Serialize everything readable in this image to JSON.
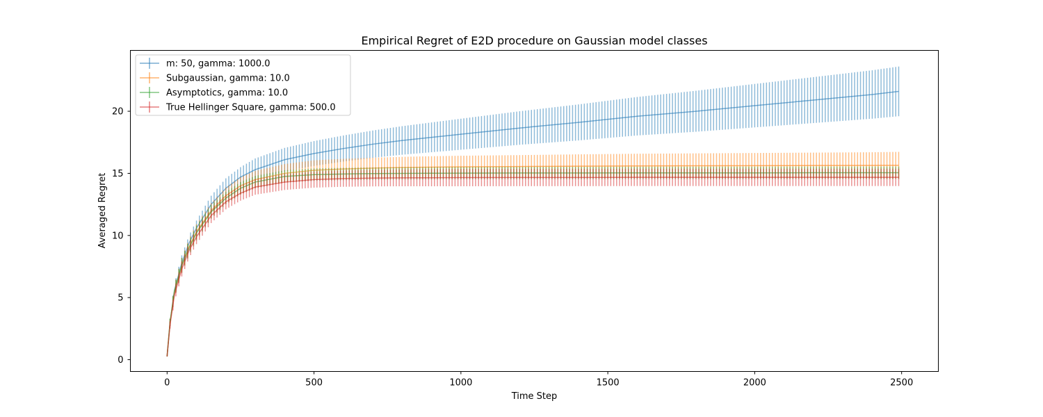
{
  "chart_data": {
    "type": "line",
    "title": "Empirical Regret of E2D procedure on Gaussian model classes",
    "xlabel": "Time Step",
    "ylabel": "Averaged Regret",
    "xlim": [
      -125,
      2625
    ],
    "ylim": [
      -0.95,
      24.9
    ],
    "xticks": [
      0,
      500,
      1000,
      1500,
      2000,
      2500
    ],
    "yticks": [
      0,
      5,
      10,
      15,
      20
    ],
    "grid": false,
    "legend_position": "upper-left",
    "error_bars": true,
    "x": [
      0,
      10,
      25,
      50,
      75,
      100,
      150,
      200,
      250,
      300,
      400,
      500,
      600,
      700,
      800,
      900,
      1000,
      1200,
      1400,
      1600,
      1800,
      2000,
      2200,
      2400,
      2490
    ],
    "series": [
      {
        "name": "m: 50, gamma: 1000.0",
        "color": "#1f77b4",
        "values": [
          0.3,
          3.0,
          5.6,
          7.8,
          9.4,
          10.6,
          12.5,
          13.8,
          14.7,
          15.3,
          16.1,
          16.6,
          17.0,
          17.35,
          17.65,
          17.9,
          18.15,
          18.65,
          19.1,
          19.6,
          20.0,
          20.45,
          20.9,
          21.35,
          21.6
        ],
        "errors": [
          0.05,
          0.3,
          0.5,
          0.6,
          0.6,
          0.6,
          0.7,
          0.8,
          0.8,
          0.9,
          0.95,
          1.0,
          1.05,
          1.1,
          1.15,
          1.2,
          1.25,
          1.35,
          1.45,
          1.55,
          1.65,
          1.75,
          1.85,
          1.95,
          2.0
        ]
      },
      {
        "name": "Subgaussian, gamma: 10.0",
        "color": "#ff7f0e",
        "values": [
          0.3,
          3.0,
          5.5,
          7.6,
          9.1,
          10.3,
          12.0,
          13.2,
          14.0,
          14.5,
          15.0,
          15.25,
          15.35,
          15.42,
          15.47,
          15.5,
          15.52,
          15.55,
          15.58,
          15.6,
          15.61,
          15.62,
          15.63,
          15.64,
          15.65
        ],
        "errors": [
          0.05,
          0.3,
          0.5,
          0.6,
          0.6,
          0.6,
          0.6,
          0.65,
          0.7,
          0.7,
          0.75,
          0.8,
          0.82,
          0.84,
          0.86,
          0.88,
          0.9,
          0.92,
          0.95,
          0.98,
          1.0,
          1.02,
          1.04,
          1.06,
          1.08
        ]
      },
      {
        "name": "Asymptotics, gamma: 10.0",
        "color": "#2ca02c",
        "values": [
          0.3,
          3.0,
          5.5,
          7.6,
          9.0,
          10.2,
          11.9,
          13.0,
          13.8,
          14.3,
          14.75,
          14.9,
          14.95,
          14.98,
          15.0,
          15.01,
          15.02,
          15.03,
          15.03,
          15.04,
          15.04,
          15.04,
          15.05,
          15.05,
          15.05
        ],
        "errors": [
          0.05,
          0.3,
          0.5,
          0.6,
          0.6,
          0.6,
          0.55,
          0.5,
          0.5,
          0.5,
          0.5,
          0.5,
          0.5,
          0.5,
          0.5,
          0.5,
          0.5,
          0.5,
          0.5,
          0.5,
          0.5,
          0.5,
          0.5,
          0.5,
          0.5
        ]
      },
      {
        "name": "True Hellinger Square, gamma: 500.0",
        "color": "#d62728",
        "values": [
          0.3,
          2.8,
          5.2,
          7.3,
          8.8,
          9.9,
          11.6,
          12.7,
          13.4,
          13.9,
          14.3,
          14.5,
          14.58,
          14.62,
          14.64,
          14.65,
          14.66,
          14.67,
          14.67,
          14.68,
          14.68,
          14.68,
          14.68,
          14.68,
          14.68
        ],
        "errors": [
          0.05,
          0.3,
          0.5,
          0.6,
          0.6,
          0.6,
          0.6,
          0.6,
          0.6,
          0.62,
          0.64,
          0.65,
          0.66,
          0.67,
          0.68,
          0.69,
          0.7,
          0.7,
          0.7,
          0.7,
          0.7,
          0.7,
          0.7,
          0.7,
          0.7
        ]
      }
    ]
  }
}
